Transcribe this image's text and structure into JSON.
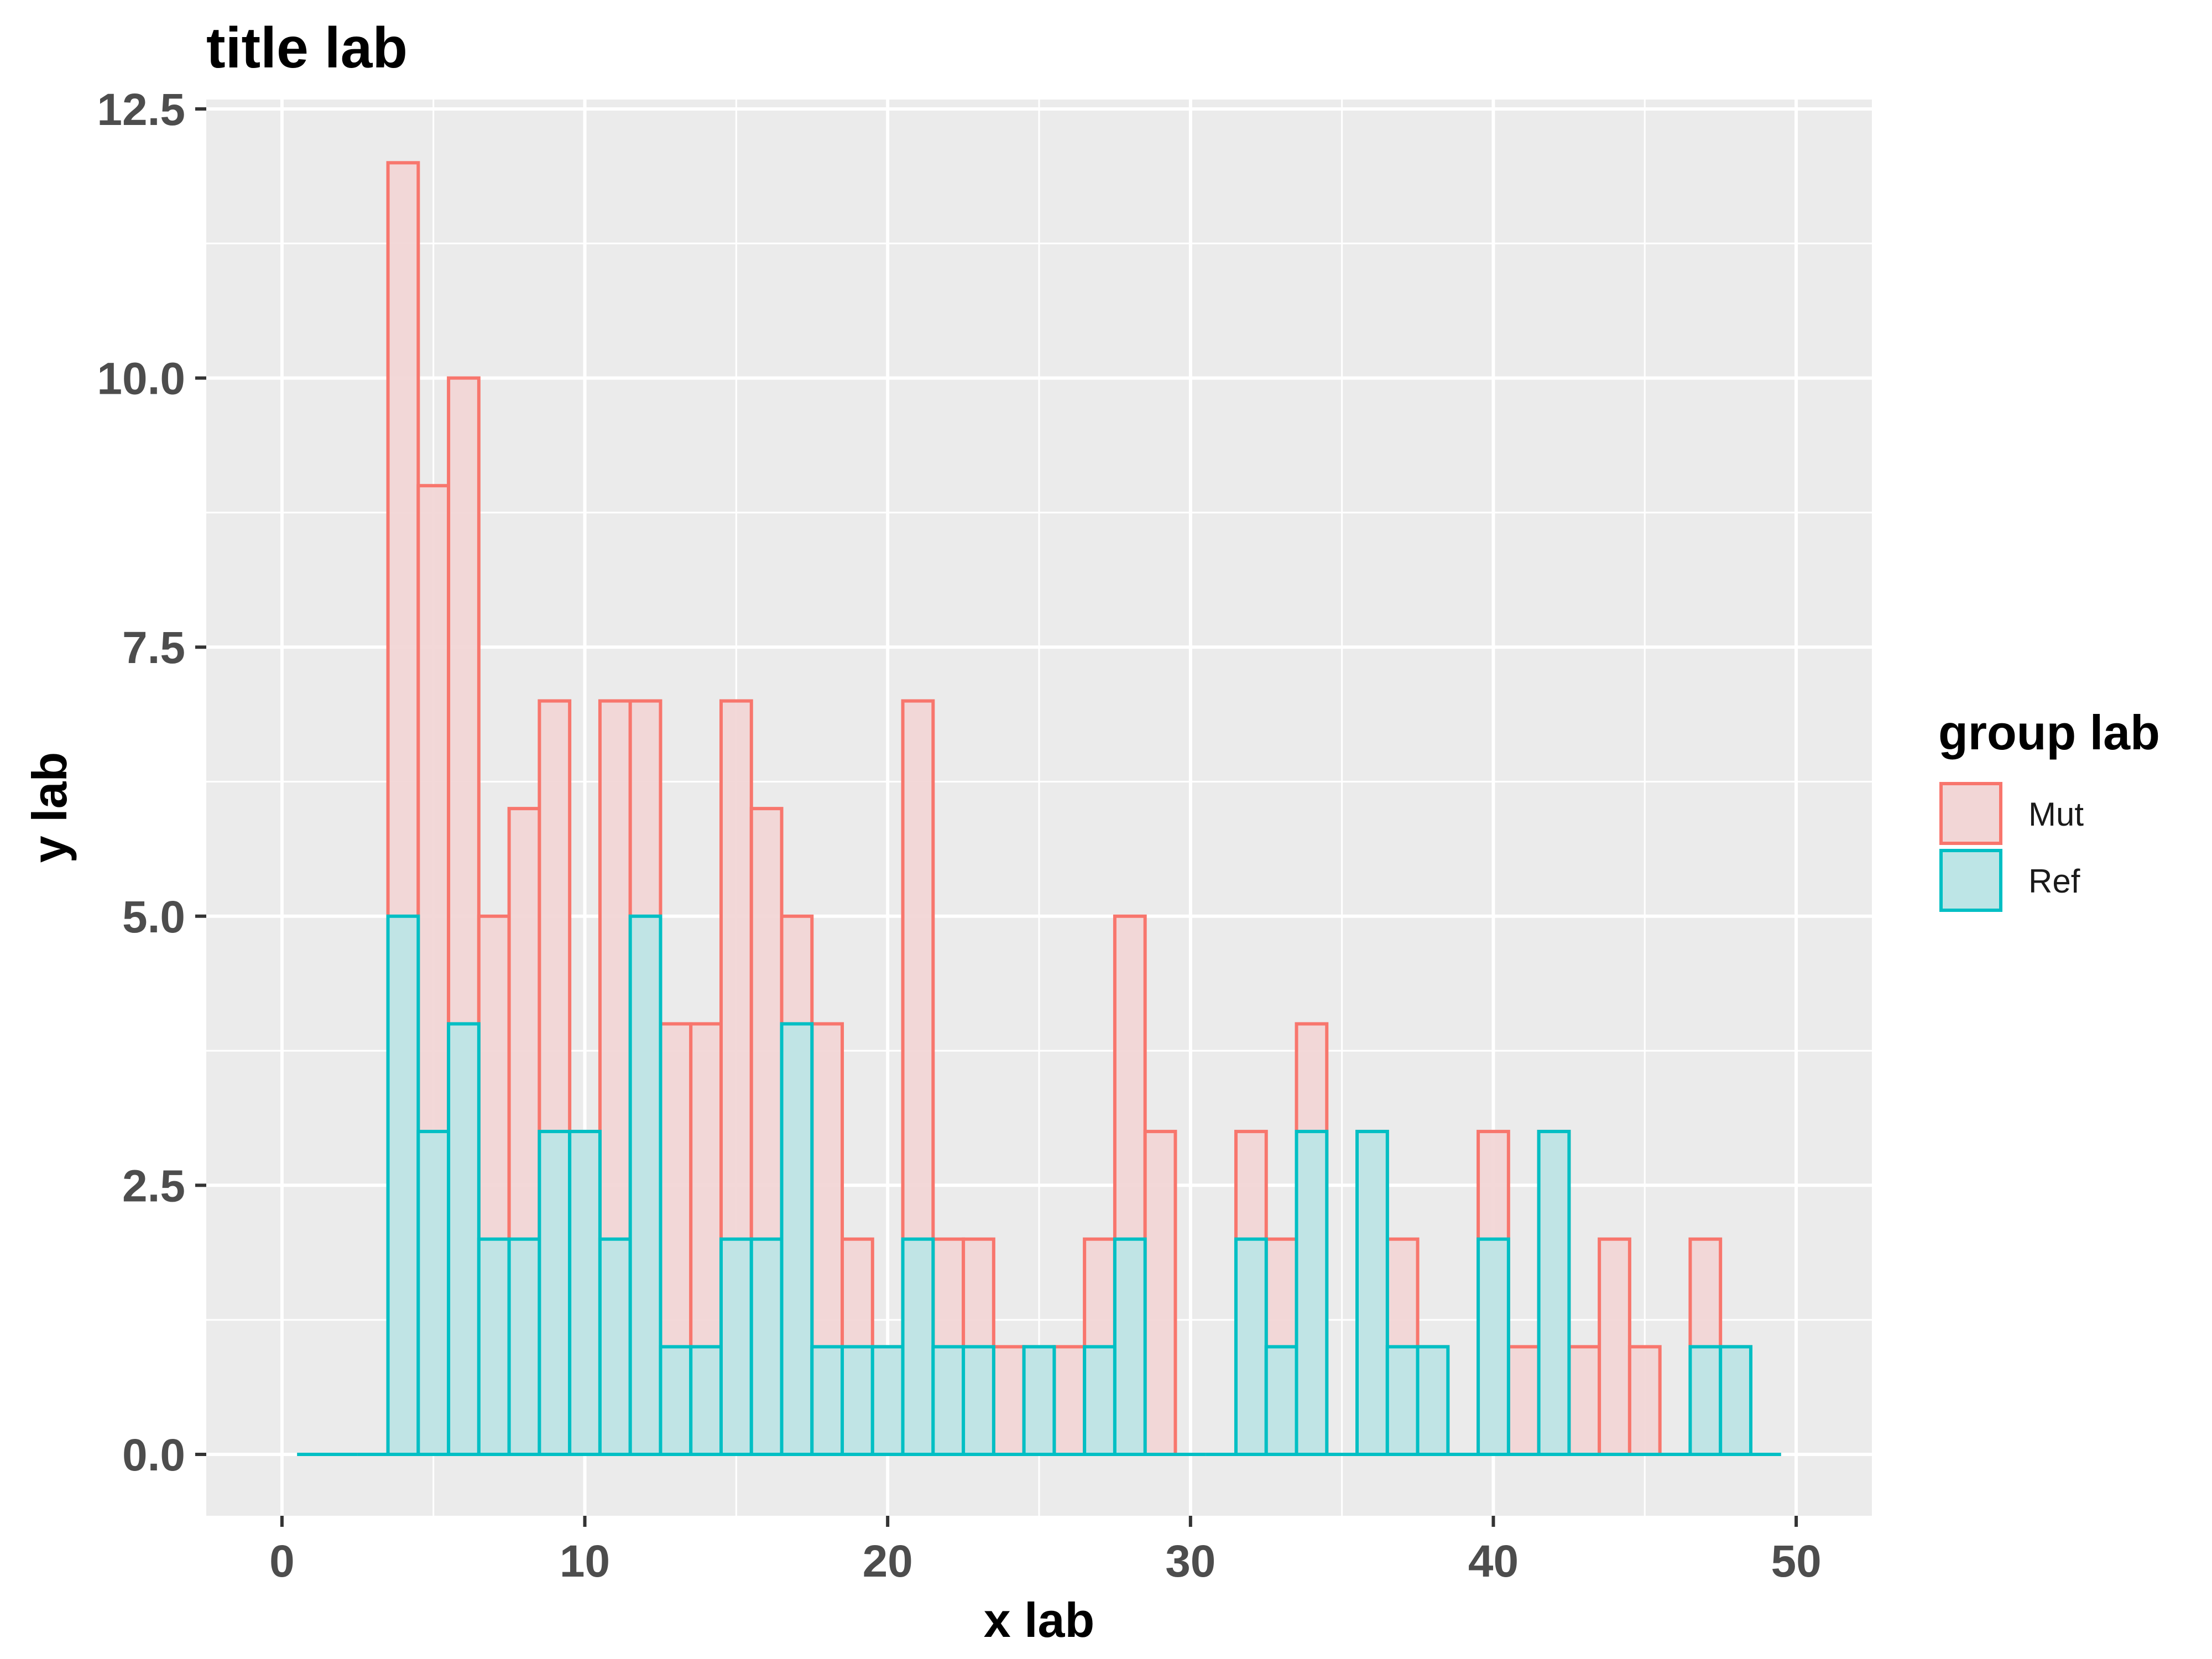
{
  "chart_data": {
    "type": "bar",
    "title": "title lab",
    "xlabel": "x lab",
    "ylabel": "y lab",
    "xlim": [
      -2.5,
      52.5
    ],
    "ylim": [
      -0.6,
      12.5
    ],
    "x_ticks": [
      0,
      10,
      20,
      30,
      40,
      50
    ],
    "y_ticks": [
      0.0,
      2.5,
      5.0,
      7.5,
      10.0,
      12.5
    ],
    "y_tick_labels": [
      "0.0",
      "2.5",
      "5.0",
      "7.5",
      "10.0",
      "12.5"
    ],
    "grid": true,
    "legend": {
      "title": "group lab",
      "position": "right"
    },
    "bin_width": 1,
    "x": [
      1,
      2,
      3,
      4,
      5,
      6,
      7,
      8,
      9,
      10,
      11,
      12,
      13,
      14,
      15,
      16,
      17,
      18,
      19,
      20,
      21,
      22,
      23,
      24,
      25,
      26,
      27,
      28,
      29,
      30,
      31,
      32,
      33,
      34,
      35,
      36,
      37,
      38,
      39,
      40,
      41,
      42,
      43,
      44,
      45,
      46,
      47,
      48,
      49
    ],
    "series": [
      {
        "name": "Mut",
        "stroke": "#f8766d",
        "fill": "#f2d6d6",
        "values": [
          0,
          0,
          0,
          12,
          9,
          10,
          5,
          6,
          7,
          3,
          7,
          7,
          4,
          4,
          7,
          6,
          5,
          4,
          2,
          1,
          7,
          2,
          2,
          1,
          1,
          1,
          2,
          5,
          3,
          0,
          0,
          3,
          2,
          4,
          0,
          3,
          2,
          1,
          0,
          3,
          1,
          3,
          1,
          2,
          1,
          0,
          2,
          1,
          0
        ]
      },
      {
        "name": "Ref",
        "stroke": "#00bfc4",
        "fill": "#bde5e6",
        "values": [
          0,
          0,
          0,
          5,
          3,
          4,
          2,
          2,
          3,
          3,
          2,
          5,
          1,
          1,
          2,
          2,
          4,
          1,
          1,
          1,
          2,
          1,
          1,
          0,
          1,
          0,
          1,
          2,
          0,
          0,
          0,
          2,
          1,
          3,
          0,
          3,
          1,
          1,
          0,
          2,
          0,
          3,
          0,
          0,
          0,
          0,
          1,
          1,
          0
        ]
      }
    ]
  }
}
